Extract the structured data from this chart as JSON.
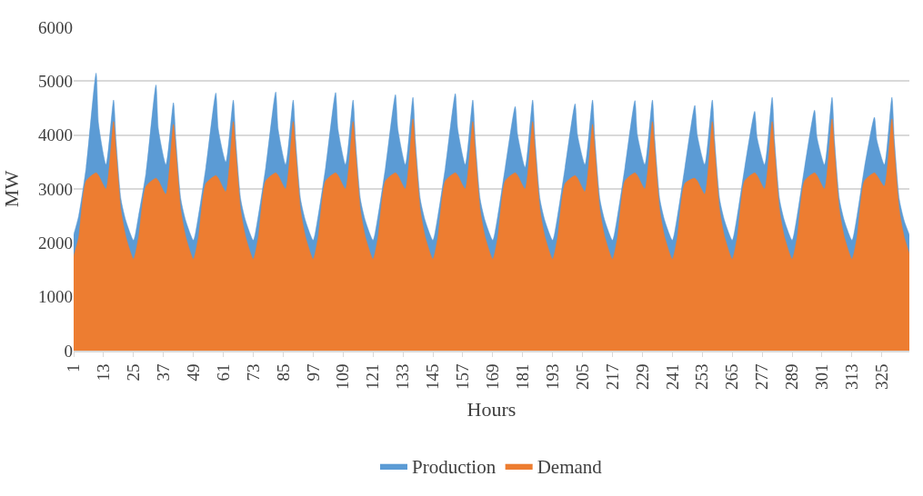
{
  "chart_data": {
    "type": "area",
    "xlabel": "Hours",
    "ylabel": "MW",
    "x": [
      1,
      3,
      6,
      10,
      11,
      14,
      17,
      18,
      20,
      22,
      25,
      27,
      30,
      34,
      35,
      38,
      41,
      42,
      44,
      46,
      49,
      51,
      54,
      58,
      59,
      62,
      65,
      66,
      68,
      70,
      73,
      75,
      78,
      82,
      83,
      86,
      89,
      90,
      92,
      94,
      97,
      99,
      102,
      106,
      107,
      110,
      113,
      114,
      116,
      118,
      121,
      123,
      126,
      130,
      131,
      134,
      137,
      138,
      140,
      142,
      145,
      147,
      150,
      154,
      155,
      158,
      161,
      162,
      164,
      166,
      169,
      171,
      174,
      178,
      179,
      182,
      185,
      186,
      188,
      190,
      193,
      195,
      198,
      202,
      203,
      206,
      209,
      210,
      212,
      214,
      217,
      219,
      222,
      226,
      227,
      230,
      233,
      234,
      236,
      238,
      241,
      243,
      246,
      250,
      251,
      254,
      257,
      258,
      260,
      262,
      265,
      267,
      270,
      274,
      275,
      278,
      281,
      282,
      284,
      286,
      289,
      291,
      294,
      298,
      299,
      302,
      305,
      306,
      308,
      310,
      313,
      315,
      318,
      322,
      323,
      326,
      329,
      330,
      332,
      334,
      336
    ],
    "series": [
      {
        "name": "Production",
        "color": "#5b9bd5",
        "values": [
          2150,
          2500,
          3400,
          5150,
          4200,
          3450,
          4650,
          3900,
          2800,
          2400,
          2050,
          2500,
          3300,
          4930,
          4100,
          3450,
          4600,
          3900,
          2800,
          2400,
          2050,
          2500,
          3400,
          4780,
          4100,
          3500,
          4650,
          3900,
          2800,
          2400,
          2050,
          2500,
          3400,
          4800,
          4100,
          3450,
          4650,
          3900,
          2800,
          2400,
          2050,
          2500,
          3400,
          4790,
          4100,
          3450,
          4650,
          3900,
          2800,
          2400,
          2050,
          2500,
          3400,
          4750,
          4100,
          3450,
          4700,
          3900,
          2800,
          2400,
          2050,
          2500,
          3400,
          4770,
          4100,
          3450,
          4650,
          3900,
          2800,
          2400,
          2050,
          2500,
          3400,
          4530,
          4000,
          3400,
          4650,
          3900,
          2800,
          2400,
          2050,
          2500,
          3400,
          4580,
          4000,
          3450,
          4650,
          3900,
          2800,
          2400,
          2050,
          2500,
          3400,
          4640,
          4000,
          3450,
          4650,
          3900,
          2800,
          2400,
          2050,
          2500,
          3400,
          4550,
          4000,
          3450,
          4650,
          3900,
          2800,
          2400,
          2050,
          2500,
          3400,
          4440,
          3950,
          3450,
          4700,
          3900,
          2800,
          2400,
          2050,
          2500,
          3400,
          4460,
          3950,
          3450,
          4700,
          3900,
          2800,
          2400,
          2050,
          2500,
          3400,
          4330,
          3900,
          3450,
          4700,
          3900,
          2800,
          2400,
          2150
        ]
      },
      {
        "name": "Demand",
        "color": "#ed7d31",
        "values": [
          1750,
          2100,
          3150,
          3300,
          3250,
          3000,
          4250,
          3700,
          2600,
          2100,
          1700,
          2100,
          3050,
          3200,
          3150,
          2900,
          4200,
          3700,
          2600,
          2100,
          1700,
          2100,
          3100,
          3250,
          3200,
          2950,
          4250,
          3700,
          2600,
          2100,
          1700,
          2100,
          3150,
          3300,
          3250,
          3000,
          4250,
          3700,
          2600,
          2100,
          1700,
          2100,
          3150,
          3300,
          3250,
          3000,
          4250,
          3700,
          2600,
          2100,
          1700,
          2100,
          3150,
          3300,
          3250,
          3000,
          4300,
          3700,
          2600,
          2100,
          1700,
          2100,
          3150,
          3300,
          3250,
          3000,
          4250,
          3700,
          2600,
          2100,
          1700,
          2100,
          3150,
          3300,
          3250,
          3000,
          4250,
          3700,
          2600,
          2100,
          1700,
          2100,
          3100,
          3250,
          3200,
          2950,
          4200,
          3700,
          2600,
          2100,
          1700,
          2100,
          3150,
          3300,
          3250,
          3000,
          4250,
          3700,
          2600,
          2100,
          1700,
          2100,
          3100,
          3200,
          3150,
          2900,
          4250,
          3700,
          2600,
          2100,
          1700,
          2100,
          3150,
          3300,
          3250,
          3000,
          4250,
          3700,
          2600,
          2100,
          1700,
          2100,
          3150,
          3300,
          3250,
          3000,
          4300,
          3700,
          2600,
          2100,
          1700,
          2100,
          3150,
          3300,
          3250,
          3050,
          4300,
          3700,
          2600,
          2100,
          1800
        ]
      }
    ],
    "xlim": [
      1,
      336
    ],
    "xticks": [
      1,
      13,
      25,
      37,
      49,
      61,
      73,
      85,
      97,
      109,
      121,
      133,
      145,
      157,
      169,
      181,
      193,
      205,
      217,
      229,
      241,
      253,
      265,
      277,
      289,
      301,
      313,
      325
    ],
    "ylim": [
      0,
      6000
    ],
    "yticks": [
      0,
      1000,
      2000,
      3000,
      4000,
      5000,
      6000
    ],
    "grid": "y",
    "legend": "bottom"
  }
}
